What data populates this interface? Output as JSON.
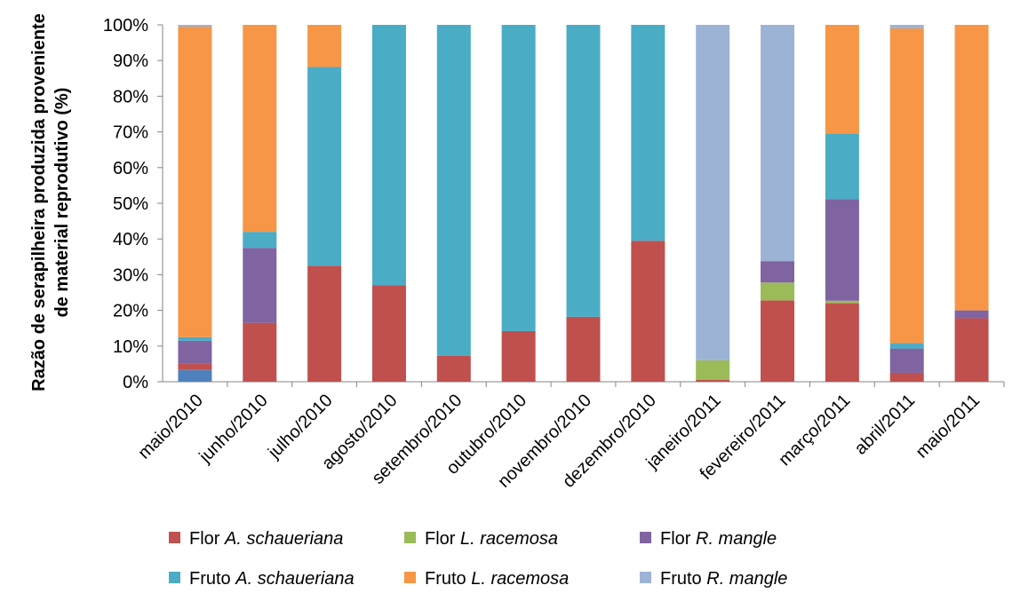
{
  "chart_data": {
    "type": "stacked_bar",
    "y_label": [
      "Razão de serapilheira produzida proveniente",
      "de material reprodutivo (%)"
    ],
    "categories": [
      "maio/2010",
      "junho/2010",
      "julho/2010",
      "agosto/2010",
      "setembro/2010",
      "outubro/2010",
      "novembro/2010",
      "dezembro/2010",
      "janeiro/2011",
      "fevereiro/2011",
      "março/2011",
      "abril/2011",
      "maio/2011"
    ],
    "series": [
      {
        "color": "#4f81bd",
        "values": [
          3.3,
          0,
          0,
          0,
          0,
          0,
          0,
          0,
          0,
          0,
          0,
          0,
          0
        ]
      },
      {
        "name": "Flor A. schaueriana",
        "color": "#c0504d",
        "values": [
          1.7,
          16.5,
          32.5,
          27,
          7.3,
          14.2,
          18.2,
          39.5,
          0.5,
          22.8,
          22,
          2.5,
          17.8
        ]
      },
      {
        "name": "Flor L. racemosa",
        "color": "#9bbb59",
        "values": [
          0,
          0,
          0,
          0,
          0,
          0,
          0,
          0,
          5.5,
          5,
          0.7,
          0,
          0
        ]
      },
      {
        "name": "Flor R. mangle",
        "color": "#8064a2",
        "values": [
          6.5,
          21,
          0,
          0,
          0,
          0,
          0,
          0,
          0,
          6,
          28.5,
          6.8,
          2.2
        ]
      },
      {
        "name": "Fruto A. schaueriana",
        "color": "#4bacc6",
        "values": [
          1,
          4.5,
          55.7,
          73,
          92.7,
          85.8,
          81.8,
          60.5,
          0,
          0,
          18.3,
          1.5,
          0
        ]
      },
      {
        "name": "Fruto L. racemosa",
        "color": "#f79646",
        "values": [
          87,
          58,
          11.8,
          0,
          0,
          0,
          0,
          0,
          0,
          0,
          30.5,
          88.2,
          80
        ]
      },
      {
        "name": "Fruto R. mangle",
        "color": "#9db3d6",
        "values": [
          0.5,
          0,
          0,
          0,
          0,
          0,
          0,
          0,
          94,
          66.2,
          0,
          1,
          0
        ]
      }
    ],
    "ylim": [
      0,
      100
    ],
    "yticks": [
      {
        "value": 0,
        "label": "0%"
      },
      {
        "value": 10,
        "label": "10%"
      },
      {
        "value": 20,
        "label": "20%"
      },
      {
        "value": 30,
        "label": "30%"
      },
      {
        "value": 40,
        "label": "40%"
      },
      {
        "value": 50,
        "label": "50%"
      },
      {
        "value": 60,
        "label": "60%"
      },
      {
        "value": 70,
        "label": "70%"
      },
      {
        "value": 80,
        "label": "80%"
      },
      {
        "value": 90,
        "label": "90%"
      },
      {
        "value": 100,
        "label": "100%"
      }
    ]
  }
}
